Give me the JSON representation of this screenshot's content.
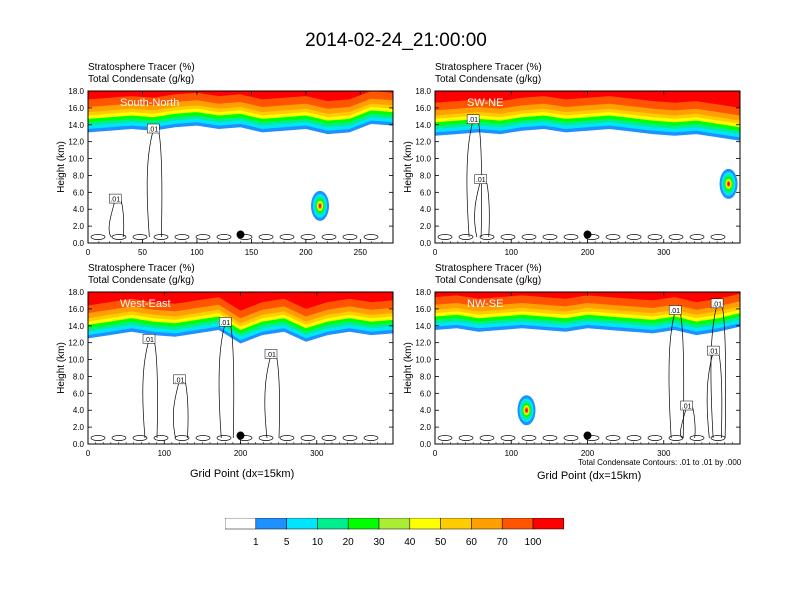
{
  "title": "2014-02-24_21:00:00",
  "panel_title_1": "Stratosphere Tracer    (%)",
  "panel_title_2": "Total Condensate    (g/kg)",
  "ylabel": "Height (km)",
  "xlabel": "Grid Point (dx=15km)",
  "contour_note": "Total Condensate Contours: .01 to .01 by .000",
  "colors": {
    "c1": "#ffffff",
    "c2": "#1e90ff",
    "c3": "#00e5ff",
    "c4": "#00ee90",
    "c5": "#00ff00",
    "c6": "#aaee33",
    "c7": "#ffff00",
    "c8": "#ffcc00",
    "c9": "#ffa000",
    "c10": "#ff5500",
    "c11": "#ff0000"
  },
  "colorbar_labels": [
    "1",
    "5",
    "10",
    "20",
    "30",
    "40",
    "50",
    "60",
    "70",
    "100"
  ],
  "chart_data": [
    {
      "type": "heatmap",
      "name": "South-North",
      "x_ticks": [
        "0",
        "50",
        "100",
        "150",
        "200",
        "250"
      ],
      "xlim": [
        0,
        280
      ],
      "y_ticks": [
        "0.0",
        "2.0",
        "4.0",
        "6.0",
        "8.0",
        "10.0",
        "12.0",
        "14.0",
        "16.0",
        "18.0"
      ],
      "ylim": [
        0,
        18
      ],
      "tropopause_km": [
        15.2,
        15.4,
        15.6,
        15.4,
        15.8,
        16.0,
        15.6,
        15.8,
        15.2,
        15.4,
        15.6,
        15.0,
        15.2,
        16.2,
        16.0
      ],
      "blobs": [
        {
          "x": 213,
          "y": 4.4,
          "value": 60
        }
      ],
      "contour_labels": [
        {
          "text": ".01",
          "x": 60,
          "y": 13.5
        },
        {
          "text": ".01",
          "x": 25,
          "y": 5.2
        }
      ],
      "marker": {
        "x": 140,
        "y": 1.0
      }
    },
    {
      "type": "heatmap",
      "name": "SW-NE",
      "x_ticks": [
        "0",
        "100",
        "200",
        "300"
      ],
      "xlim": [
        0,
        400
      ],
      "y_ticks": [
        "0.0",
        "2.0",
        "4.0",
        "6.0",
        "8.0",
        "10.0",
        "12.0",
        "14.0",
        "16.0",
        "18.0"
      ],
      "ylim": [
        0,
        18
      ],
      "tropopause_km": [
        14.8,
        15.0,
        15.2,
        15.0,
        15.4,
        15.6,
        15.2,
        15.4,
        15.6,
        15.3,
        15.0,
        14.8,
        15.0,
        14.6,
        14.2
      ],
      "blobs": [
        {
          "x": 385,
          "y": 7.0,
          "value": 50
        }
      ],
      "contour_labels": [
        {
          "text": ".01",
          "x": 50,
          "y": 14.6
        },
        {
          "text": ".01",
          "x": 60,
          "y": 7.5
        }
      ],
      "marker": {
        "x": 200,
        "y": 1.0
      }
    },
    {
      "type": "heatmap",
      "name": "West-East",
      "x_ticks": [
        "0",
        "100",
        "200",
        "300"
      ],
      "xlim": [
        0,
        400
      ],
      "y_ticks": [
        "0.0",
        "2.0",
        "4.0",
        "6.0",
        "8.0",
        "10.0",
        "12.0",
        "14.0",
        "16.0",
        "18.0"
      ],
      "ylim": [
        0,
        18
      ],
      "tropopause_km": [
        14.6,
        15.0,
        15.4,
        15.0,
        14.8,
        15.2,
        15.6,
        14.0,
        15.0,
        15.4,
        14.2,
        15.0,
        15.4,
        15.0,
        15.2
      ],
      "blobs": [],
      "contour_labels": [
        {
          "text": ".01",
          "x": 180,
          "y": 14.4
        },
        {
          "text": ".01",
          "x": 80,
          "y": 12.4
        },
        {
          "text": ".01",
          "x": 240,
          "y": 10.6
        },
        {
          "text": ".01",
          "x": 120,
          "y": 7.6
        }
      ],
      "marker": {
        "x": 200,
        "y": 1.0
      }
    },
    {
      "type": "heatmap",
      "name": "NW-SE",
      "x_ticks": [
        "0",
        "100",
        "200",
        "300"
      ],
      "xlim": [
        0,
        400
      ],
      "y_ticks": [
        "0.0",
        "2.0",
        "4.0",
        "6.0",
        "8.0",
        "10.0",
        "12.0",
        "14.0",
        "16.0",
        "18.0"
      ],
      "ylim": [
        0,
        18
      ],
      "tropopause_km": [
        15.6,
        15.8,
        15.4,
        15.6,
        15.8,
        15.6,
        15.4,
        15.8,
        15.6,
        15.4,
        15.2,
        15.6,
        15.0,
        15.4,
        16.0
      ],
      "blobs": [
        {
          "x": 120,
          "y": 4.0,
          "value": 40
        }
      ],
      "contour_labels": [
        {
          "text": ".01",
          "x": 315,
          "y": 15.8
        },
        {
          "text": ".01",
          "x": 370,
          "y": 16.6
        },
        {
          "text": ".01",
          "x": 365,
          "y": 11.0
        },
        {
          "text": ".01",
          "x": 330,
          "y": 4.5
        }
      ],
      "marker": {
        "x": 200,
        "y": 1.0
      }
    }
  ]
}
